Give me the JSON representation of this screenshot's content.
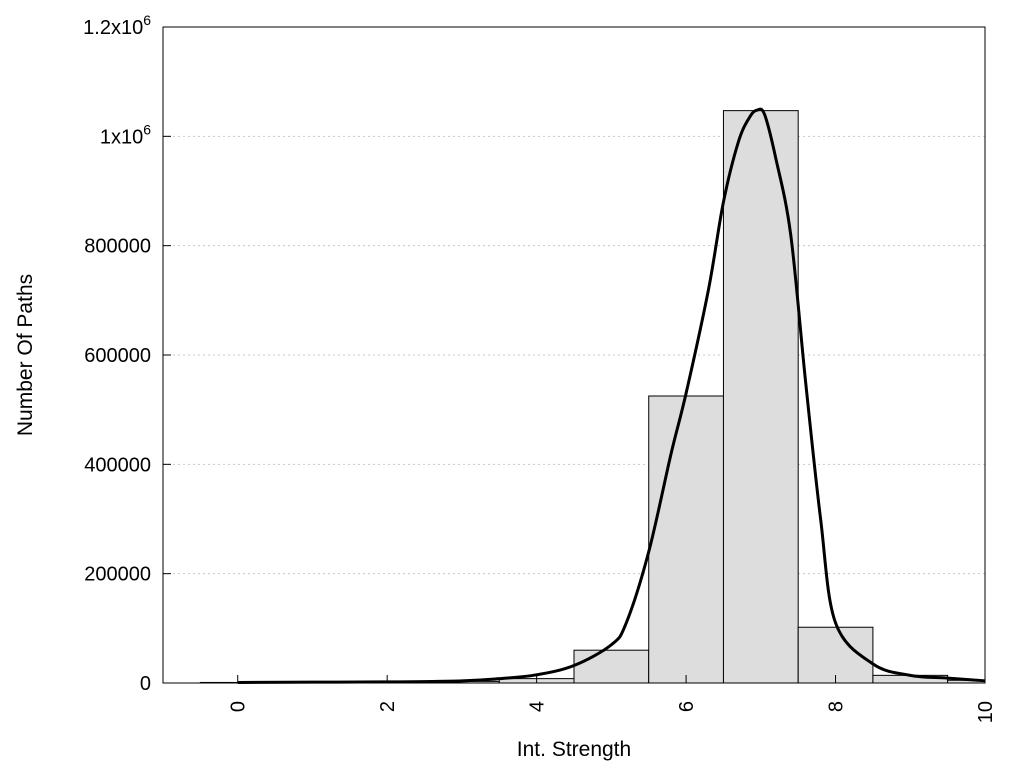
{
  "chart_data": {
    "type": "bar",
    "title": "",
    "xlabel": "Int. Strength",
    "ylabel": "Number Of Paths",
    "xlim": [
      -1,
      10
    ],
    "ylim": [
      0,
      1200000
    ],
    "x_ticks": [
      0,
      2,
      4,
      6,
      8,
      10
    ],
    "y_ticks": [
      {
        "value": 0,
        "label": "0"
      },
      {
        "value": 200000,
        "label": "200000"
      },
      {
        "value": 400000,
        "label": "400000"
      },
      {
        "value": 600000,
        "label": "600000"
      },
      {
        "value": 800000,
        "label": "800000"
      },
      {
        "value": 1000000,
        "label": "1x10",
        "sup": "6"
      },
      {
        "value": 1200000,
        "label": "1.2x10",
        "sup": "6"
      }
    ],
    "grid": true,
    "bars": {
      "bin_width": 1,
      "centers": [
        0,
        1,
        2,
        3,
        4,
        5,
        6,
        7,
        8,
        9,
        10
      ],
      "values": [
        1000,
        1500,
        2000,
        3000,
        8000,
        60000,
        525000,
        1047000,
        102000,
        14000,
        5000
      ]
    },
    "curve": {
      "x": [
        0,
        1,
        2,
        3,
        3.5,
        4,
        4.5,
        5,
        5.2,
        5.5,
        5.8,
        6,
        6.3,
        6.5,
        6.7,
        6.85,
        6.95,
        7.05,
        7.2,
        7.4,
        7.6,
        7.8,
        8,
        8.5,
        9,
        9.5,
        10
      ],
      "y": [
        1000,
        1500,
        2000,
        4000,
        8000,
        15000,
        32000,
        70000,
        110000,
        240000,
        420000,
        530000,
        720000,
        880000,
        990000,
        1035000,
        1048000,
        1040000,
        960000,
        820000,
        550000,
        300000,
        110000,
        35000,
        14000,
        9000,
        4000
      ]
    }
  }
}
